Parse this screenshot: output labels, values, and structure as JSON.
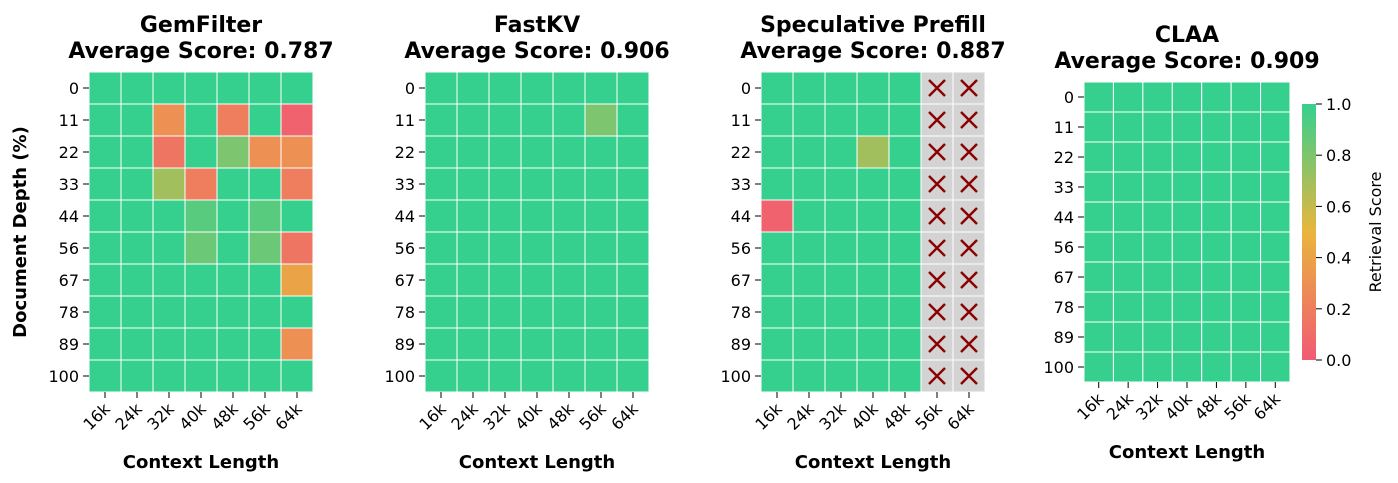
{
  "colors": {
    "high": "#35d08e",
    "mid": "#e9b53d",
    "low": "#f15a73",
    "unavailable": "#d3d3d3",
    "unavailable_mark": "#8b0000",
    "grid": "#ffffff"
  },
  "colorbar": {
    "label": "Retrieval Score",
    "min": 0.0,
    "max": 1.0,
    "ticks": [
      "0.0",
      "0.2",
      "0.4",
      "0.6",
      "0.8",
      "1.0"
    ]
  },
  "chart_data": [
    {
      "type": "heatmap",
      "title": "GemFilter",
      "subtitle": "Average Score: 0.787",
      "xlabel": "Context Length",
      "ylabel": "Document Depth (%)",
      "x": [
        "16k",
        "24k",
        "32k",
        "40k",
        "48k",
        "56k",
        "64k"
      ],
      "y": [
        "0",
        "11",
        "22",
        "33",
        "44",
        "56",
        "67",
        "78",
        "89",
        "100"
      ],
      "values": [
        [
          1,
          1,
          1,
          1,
          1,
          1,
          1
        ],
        [
          1,
          1,
          0.3,
          1,
          0.2,
          1,
          0.05
        ],
        [
          1,
          1,
          0.15,
          1,
          0.8,
          0.3,
          0.3
        ],
        [
          1,
          1,
          0.7,
          0.2,
          1,
          1,
          0.2
        ],
        [
          1,
          1,
          1,
          0.9,
          1,
          0.9,
          1
        ],
        [
          1,
          1,
          1,
          0.85,
          1,
          0.85,
          0.15
        ],
        [
          1,
          1,
          1,
          1,
          1,
          1,
          0.4
        ],
        [
          1,
          1,
          1,
          1,
          1,
          1,
          1
        ],
        [
          1,
          1,
          1,
          1,
          1,
          1,
          0.3
        ],
        [
          1,
          1,
          1,
          1,
          1,
          1,
          1
        ]
      ]
    },
    {
      "type": "heatmap",
      "title": "FastKV",
      "subtitle": "Average Score: 0.906",
      "xlabel": "Context Length",
      "ylabel": "",
      "x": [
        "16k",
        "24k",
        "32k",
        "40k",
        "48k",
        "56k",
        "64k"
      ],
      "y": [
        "0",
        "11",
        "22",
        "33",
        "44",
        "56",
        "67",
        "78",
        "89",
        "100"
      ],
      "values": [
        [
          1,
          1,
          1,
          1,
          1,
          1,
          1
        ],
        [
          1,
          1,
          1,
          1,
          1,
          0.8,
          1
        ],
        [
          1,
          1,
          1,
          1,
          1,
          1,
          1
        ],
        [
          1,
          1,
          1,
          1,
          1,
          1,
          1
        ],
        [
          1,
          1,
          1,
          1,
          1,
          1,
          1
        ],
        [
          1,
          1,
          1,
          1,
          1,
          1,
          1
        ],
        [
          1,
          1,
          1,
          1,
          1,
          1,
          1
        ],
        [
          1,
          1,
          1,
          1,
          1,
          1,
          1
        ],
        [
          1,
          1,
          1,
          1,
          1,
          1,
          1
        ],
        [
          1,
          1,
          1,
          1,
          1,
          1,
          1
        ]
      ]
    },
    {
      "type": "heatmap",
      "title": "Speculative Prefill",
      "subtitle": "Average Score: 0.887",
      "xlabel": "Context Length",
      "ylabel": "",
      "x": [
        "16k",
        "24k",
        "32k",
        "40k",
        "48k",
        "56k",
        "64k"
      ],
      "y": [
        "0",
        "11",
        "22",
        "33",
        "44",
        "56",
        "67",
        "78",
        "89",
        "100"
      ],
      "values": [
        [
          1,
          1,
          1,
          1,
          1,
          null,
          null
        ],
        [
          1,
          1,
          1,
          1,
          1,
          null,
          null
        ],
        [
          1,
          1,
          1,
          0.7,
          1,
          null,
          null
        ],
        [
          1,
          1,
          1,
          1,
          1,
          null,
          null
        ],
        [
          0.05,
          1,
          1,
          1,
          1,
          null,
          null
        ],
        [
          1,
          1,
          1,
          1,
          1,
          null,
          null
        ],
        [
          1,
          1,
          1,
          1,
          1,
          null,
          null
        ],
        [
          1,
          1,
          1,
          1,
          1,
          null,
          null
        ],
        [
          1,
          1,
          1,
          1,
          1,
          null,
          null
        ],
        [
          1,
          1,
          1,
          1,
          1,
          null,
          null
        ]
      ]
    },
    {
      "type": "heatmap",
      "title": "CLAA",
      "subtitle": "Average Score: 0.909",
      "xlabel": "Context Length",
      "ylabel": "",
      "x": [
        "16k",
        "24k",
        "32k",
        "40k",
        "48k",
        "56k",
        "64k"
      ],
      "y": [
        "0",
        "11",
        "22",
        "33",
        "44",
        "56",
        "67",
        "78",
        "89",
        "100"
      ],
      "values": [
        [
          1,
          1,
          1,
          1,
          1,
          1,
          1
        ],
        [
          1,
          1,
          1,
          1,
          1,
          1,
          1
        ],
        [
          1,
          1,
          1,
          1,
          1,
          1,
          1
        ],
        [
          1,
          1,
          1,
          1,
          1,
          1,
          1
        ],
        [
          1,
          1,
          1,
          1,
          1,
          1,
          1
        ],
        [
          1,
          1,
          1,
          1,
          1,
          1,
          1
        ],
        [
          1,
          1,
          1,
          1,
          1,
          1,
          1
        ],
        [
          1,
          1,
          1,
          1,
          1,
          1,
          1
        ],
        [
          1,
          1,
          1,
          1,
          1,
          1,
          1
        ],
        [
          1,
          1,
          1,
          1,
          1,
          1,
          1
        ]
      ]
    }
  ]
}
